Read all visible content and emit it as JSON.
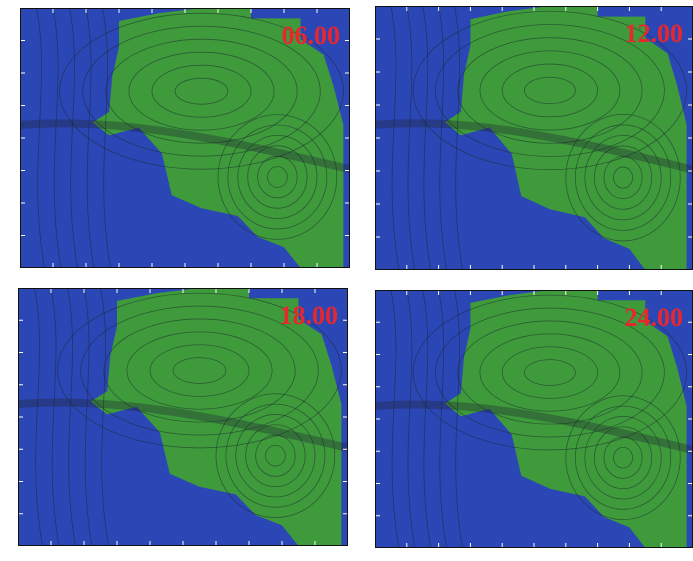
{
  "panels": [
    {
      "label": "06.00"
    },
    {
      "label": "12.00"
    },
    {
      "label": "18.00"
    },
    {
      "label": "24.00"
    }
  ]
}
